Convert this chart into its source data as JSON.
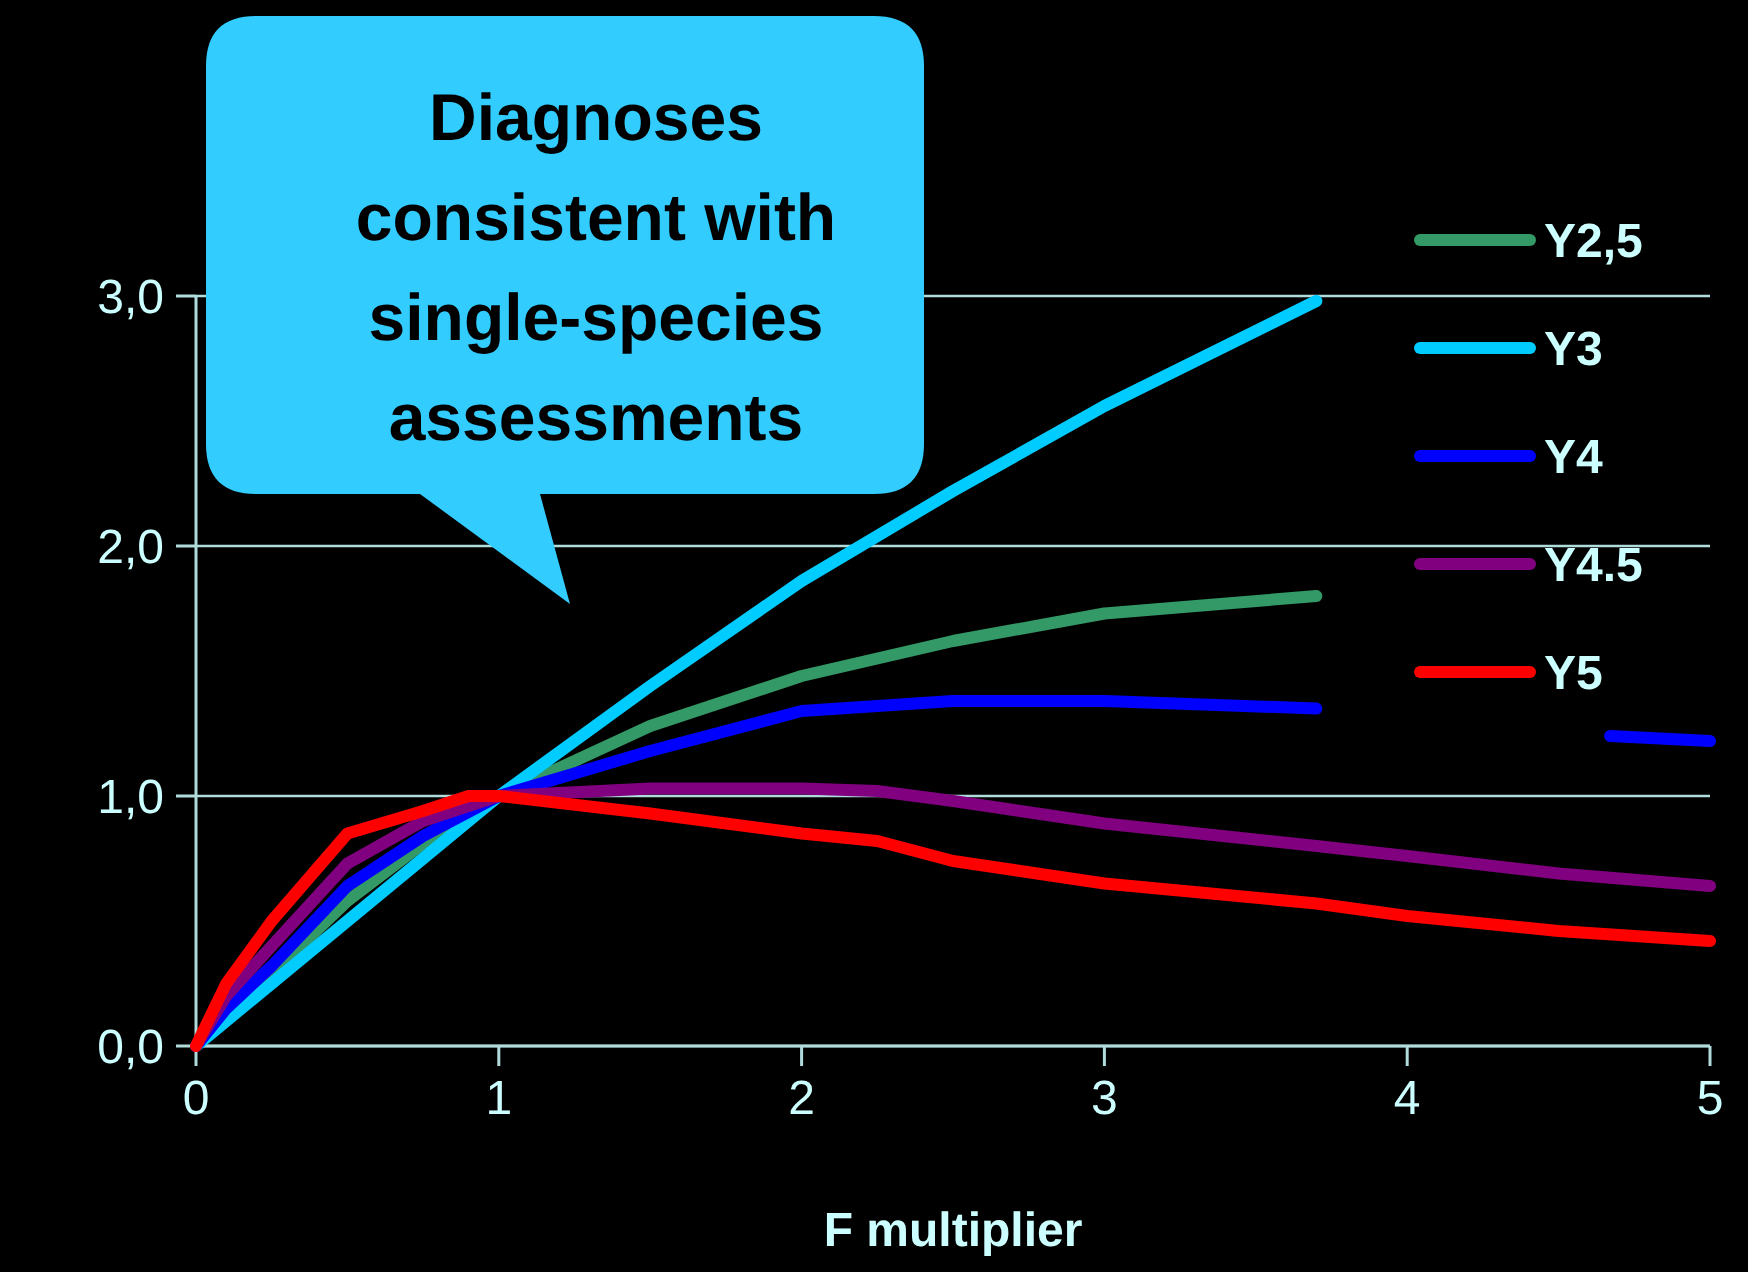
{
  "chart_data": {
    "type": "line",
    "xlabel": "F multiplier",
    "annotations": [
      "Diagnoses consistent with single-species assessments"
    ],
    "xlim": [
      0,
      5
    ],
    "xticks": [
      0,
      1,
      2,
      3,
      4,
      5
    ],
    "ylim": [
      0,
      3
    ],
    "yticks": [
      {
        "value": 0,
        "label": "0,0"
      },
      {
        "value": 1,
        "label": "1,0"
      },
      {
        "value": 2,
        "label": "2,0"
      },
      {
        "value": 3,
        "label": "3,0"
      }
    ],
    "grid": "y",
    "legend": "right",
    "line_style": "solid",
    "series": [
      {
        "name": "Y2,5",
        "color": "#339966",
        "x": [
          0,
          0.1,
          0.25,
          0.5,
          0.75,
          1,
          1.5,
          2,
          2.5,
          3,
          3.7
        ],
        "values": [
          0,
          0.12,
          0.29,
          0.58,
          0.81,
          1,
          1.28,
          1.48,
          1.62,
          1.73,
          1.8
        ]
      },
      {
        "name": "Y3",
        "color": "#00ccff",
        "x": [
          0,
          0.5,
          1,
          1.5,
          2,
          2.5,
          3,
          3.7
        ],
        "values": [
          0,
          0.5,
          1,
          1.44,
          1.86,
          2.22,
          2.56,
          2.98
        ]
      },
      {
        "name": "Y4",
        "color": "#0000ff",
        "x": [
          0,
          0.1,
          0.25,
          0.5,
          0.75,
          1,
          1.5,
          2,
          2.5,
          3,
          3.7,
          4,
          4.5,
          4.67,
          5
        ],
        "values": [
          0,
          0.15,
          0.32,
          0.64,
          0.84,
          1,
          1.18,
          1.34,
          1.38,
          1.38,
          1.35,
          null,
          null,
          1.24,
          1.22
        ]
      },
      {
        "name": "Y4.5",
        "color": "#800080",
        "x": [
          0,
          0.1,
          0.25,
          0.5,
          0.75,
          1,
          1.5,
          2,
          2.25,
          2.5,
          3,
          3.7,
          4,
          4.5,
          5
        ],
        "values": [
          0,
          0.2,
          0.4,
          0.73,
          0.9,
          1,
          1.03,
          1.03,
          1.02,
          0.98,
          0.89,
          0.8,
          0.76,
          0.69,
          0.64
        ]
      },
      {
        "name": "Y5",
        "color": "#ff0000",
        "x": [
          0,
          0.1,
          0.25,
          0.5,
          0.75,
          0.9,
          1,
          1.5,
          2,
          2.25,
          2.5,
          3,
          3.7,
          4,
          4.5,
          5
        ],
        "values": [
          0,
          0.25,
          0.5,
          0.85,
          0.94,
          1,
          1,
          0.93,
          0.85,
          0.82,
          0.74,
          0.65,
          0.57,
          0.52,
          0.46,
          0.42
        ]
      }
    ]
  }
}
